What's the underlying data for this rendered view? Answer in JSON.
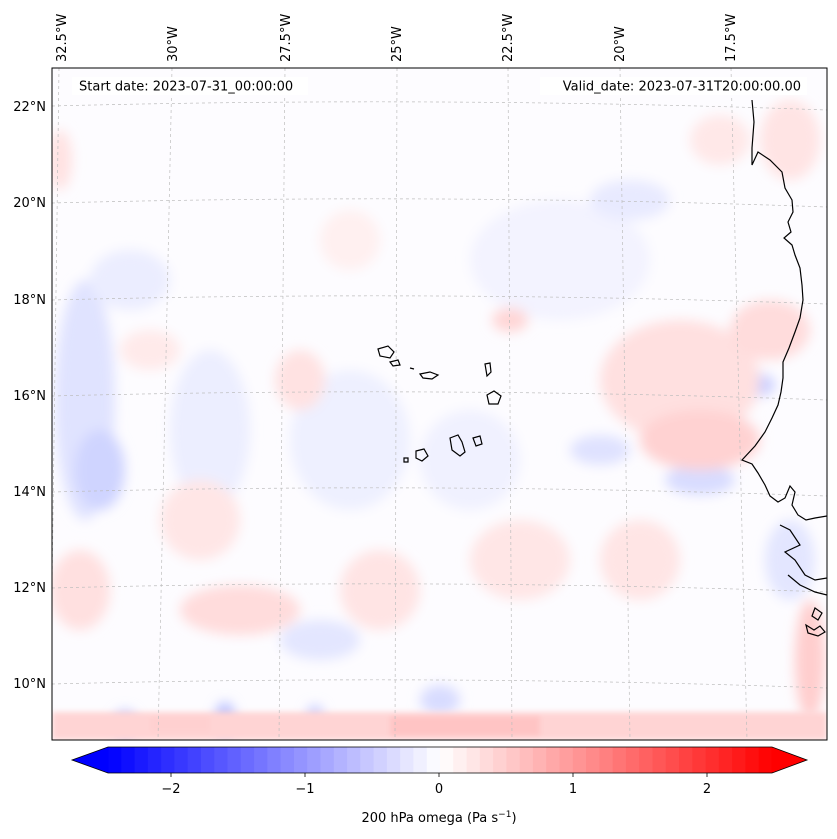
{
  "header": {
    "start_date": "Start date: 2023-07-31_00:00:00",
    "valid_date": "Valid_date: 2023-07-31T20:00:00.00"
  },
  "map": {
    "lon_ticks": [
      "32.5°W",
      "30°W",
      "27.5°W",
      "25°W",
      "22.5°W",
      "20°W",
      "17.5°W"
    ],
    "lat_ticks": [
      "22°N",
      "20°N",
      "18°N",
      "16°N",
      "14°N",
      "12°N",
      "10°N"
    ]
  },
  "colorbar": {
    "tick_labels": [
      "−2",
      "−1",
      "0",
      "1",
      "2"
    ],
    "label_main": "200 hPa omega (Pa s",
    "label_exp": "−1",
    "label_close": ")",
    "min_color": "#0000ff",
    "mid_color": "#ffffff",
    "max_color": "#ff0000"
  }
}
